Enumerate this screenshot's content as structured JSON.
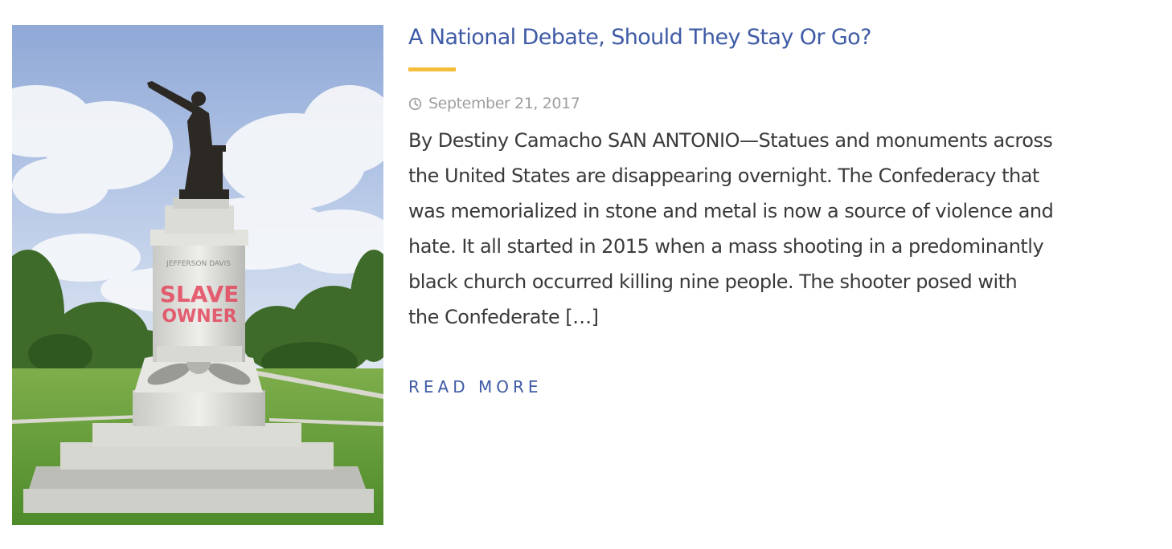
{
  "post": {
    "image_alt": "Statue on a pedestal with graffiti in a park",
    "graffiti_line1": "SLAVE",
    "graffiti_line2": "OWNER",
    "pedestal_text": "JEFFERSON DAVIS",
    "title": "A National Debate, Should They Stay Or Go?",
    "date": "September 21, 2017",
    "excerpt_lines": [
      "By Destiny Camacho SAN ANTONIO—Statues and monuments across",
      "the United States are disappearing overnight. The Confederacy that",
      "was memorialized in stone and metal is now a source of violence and",
      "hate. It all started in 2015 when a mass shooting in a predominantly",
      "black church occurred killing nine people. The shooter posed with",
      "the Confederate […]"
    ],
    "read_more": "Read More"
  },
  "icons": {
    "date": "clock-icon"
  },
  "colors": {
    "title": "#3f5ba6",
    "accent": "#f4bd3a",
    "meta": "#9e9e9e",
    "body": "#3a3a3a",
    "link": "#3f5ba6"
  }
}
